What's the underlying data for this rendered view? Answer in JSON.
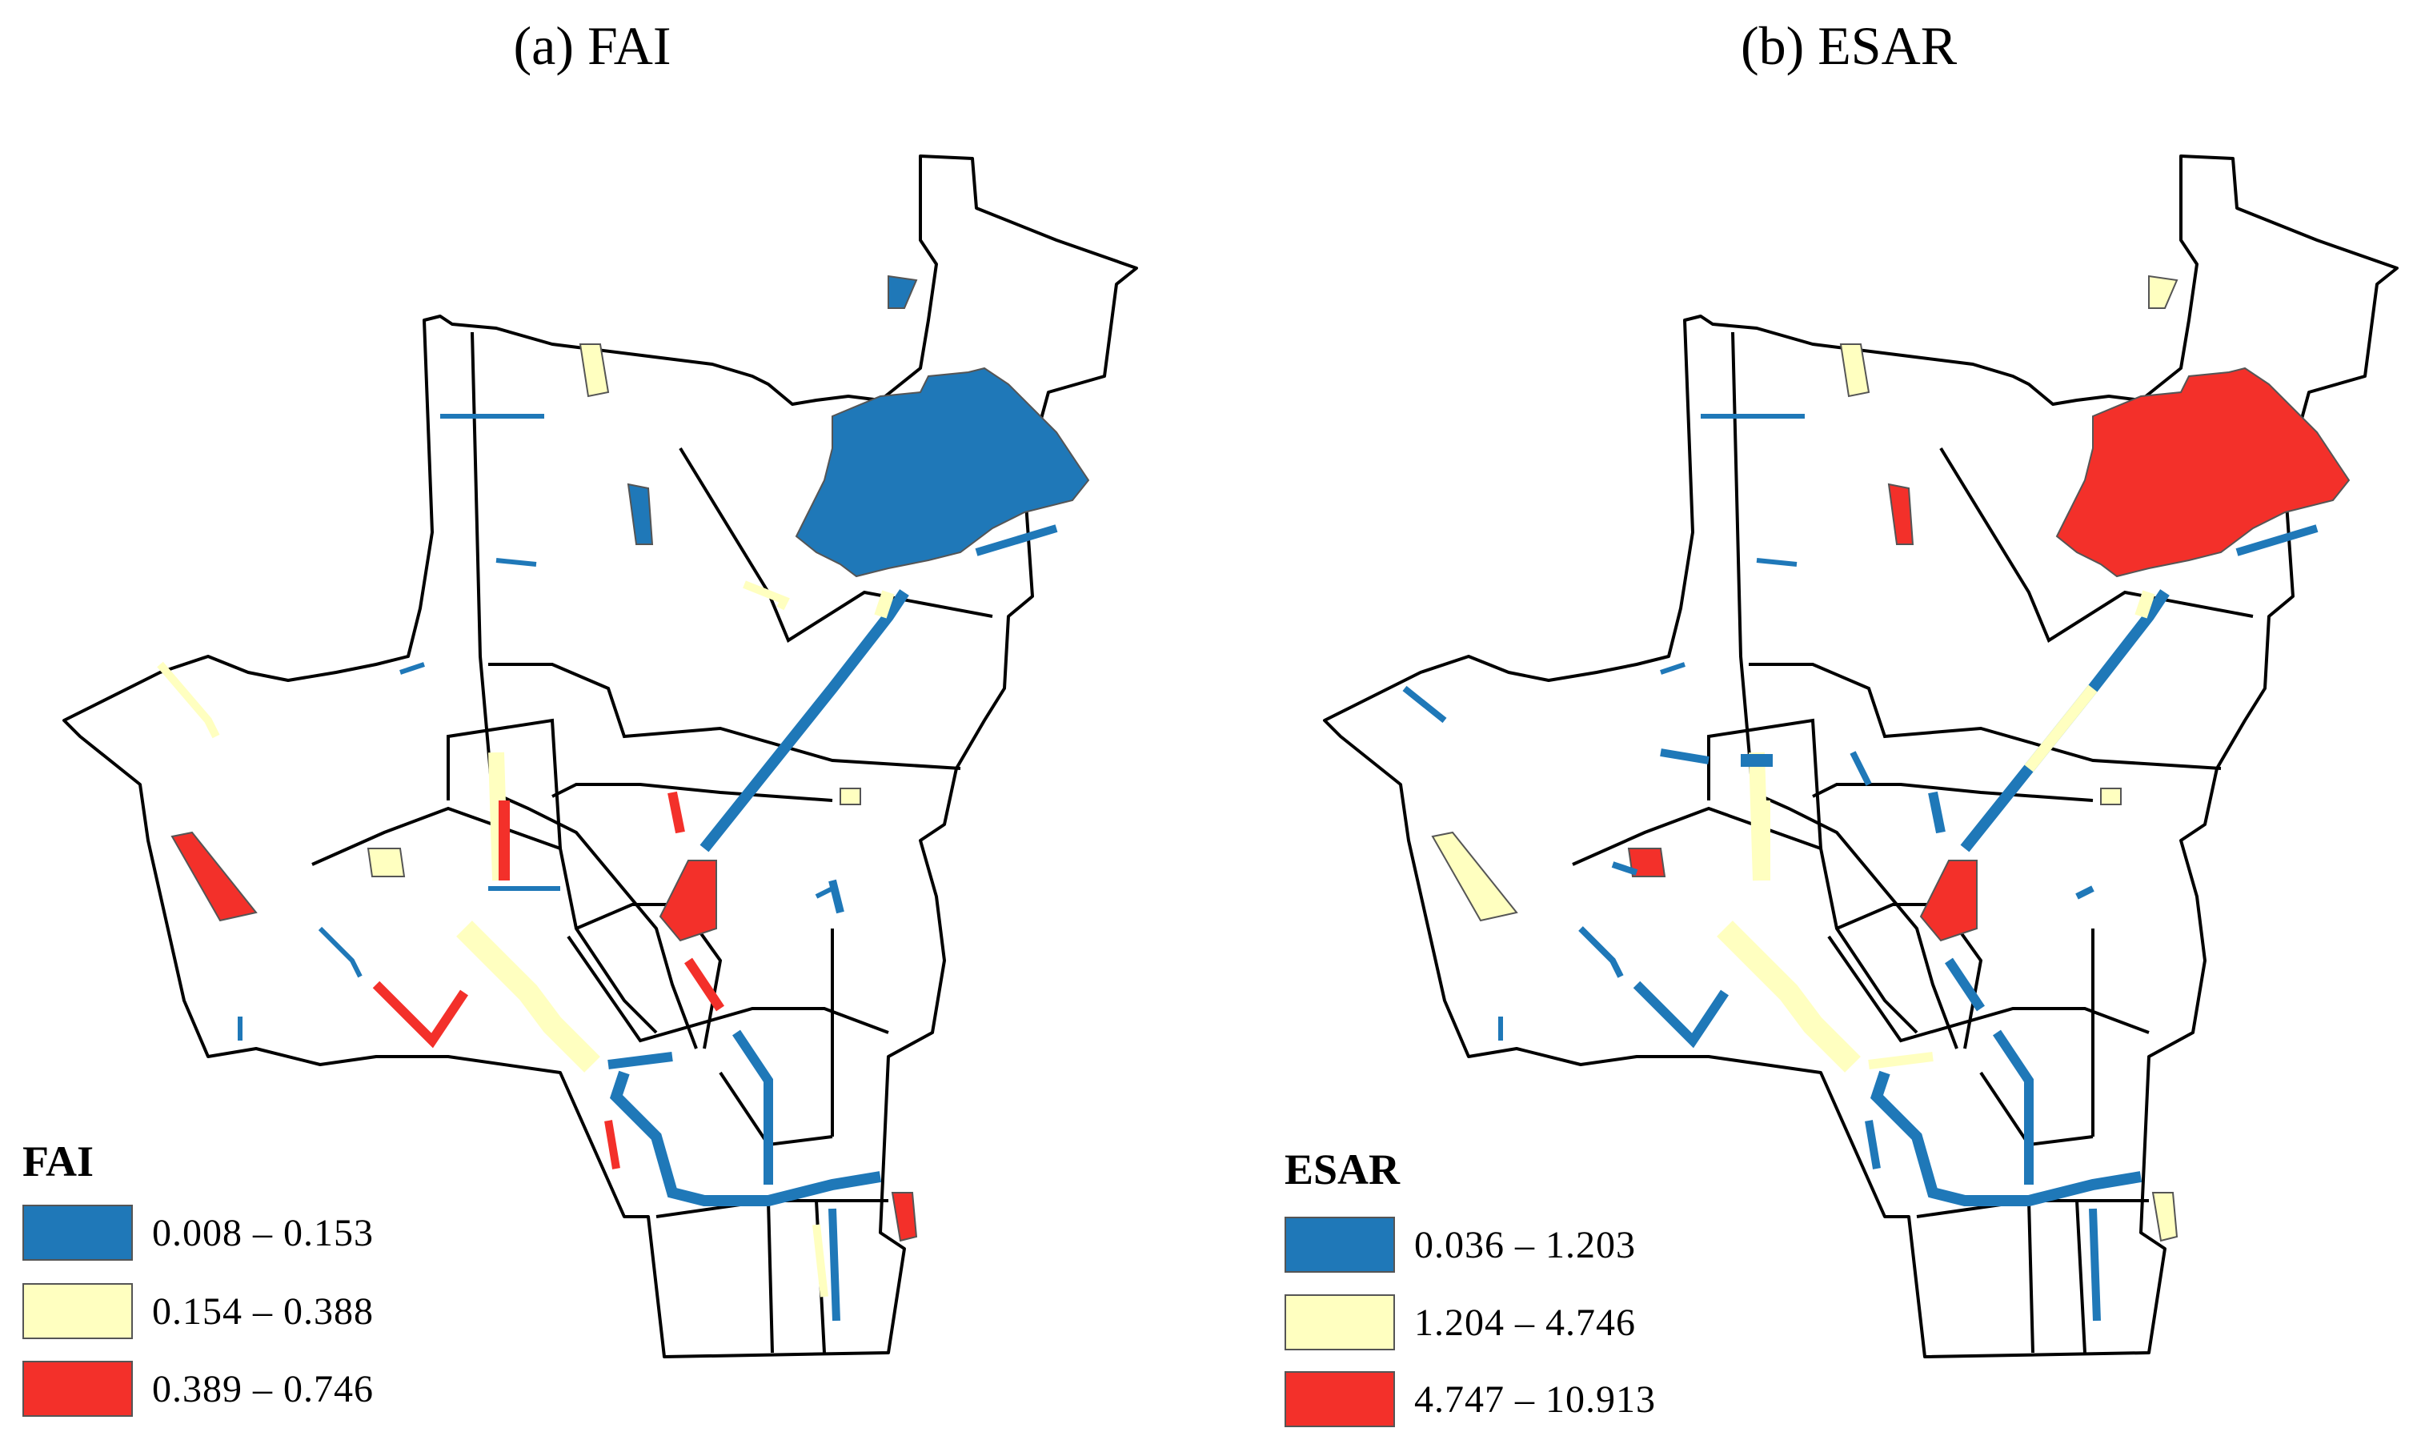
{
  "panels": [
    {
      "title": "(a) FAI",
      "legend": {
        "title": "FAI",
        "classes": [
          {
            "label": "0.008 – 0.153",
            "color": "#1f78b8"
          },
          {
            "label": "0.154 – 0.388",
            "color": "#ffffc0"
          },
          {
            "label": "0.389 – 0.746",
            "color": "#f3302a"
          }
        ]
      }
    },
    {
      "title": "(b) ESAR",
      "legend": {
        "title": "ESAR",
        "classes": [
          {
            "label": "0.036 – 1.203",
            "color": "#1f78b8"
          },
          {
            "label": "1.204 – 4.746",
            "color": "#ffffc0"
          },
          {
            "label": "4.747 – 10.913",
            "color": "#f3302a"
          }
        ]
      }
    }
  ]
}
